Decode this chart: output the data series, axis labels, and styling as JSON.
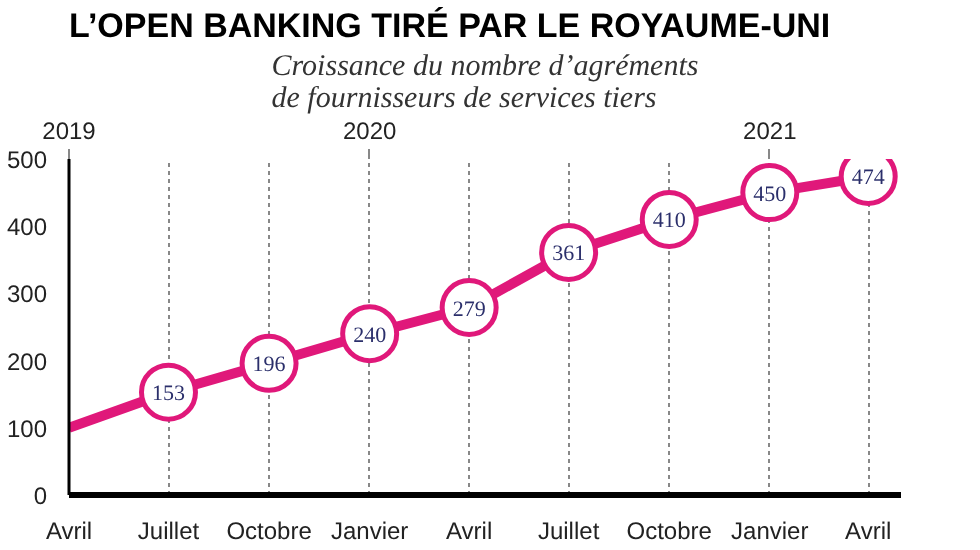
{
  "chart_data": {
    "type": "line",
    "title": "L’OPEN BANKING TIRÉ PAR LE ROYAUME-UNI",
    "subtitle": "Croissance du nombre d’agréments de fournisseurs de services tiers",
    "x": [
      "2019-04",
      "2019-07",
      "2019-10",
      "2020-01",
      "2020-04",
      "2020-07",
      "2020-10",
      "2021-01",
      "2021-04"
    ],
    "series": [
      {
        "color": "#e0187a",
        "values": [
          100,
          153,
          196,
          240,
          279,
          361,
          410,
          450,
          474
        ],
        "value_labels": [
          null,
          "153",
          "196",
          "240",
          "279",
          "361",
          "410",
          "450",
          "474"
        ]
      }
    ],
    "xlim": [
      "2019-04",
      "2021-05"
    ],
    "xticks": [
      {
        "value": "2019-04",
        "label": "Avril"
      },
      {
        "value": "2019-07",
        "label": "Juillet"
      },
      {
        "value": "2019-10",
        "label": "Octobre"
      },
      {
        "value": "2020-01",
        "label": "Janvier"
      },
      {
        "value": "2020-04",
        "label": "Avril"
      },
      {
        "value": "2020-07",
        "label": "Juillet"
      },
      {
        "value": "2020-10",
        "label": "Octobre"
      },
      {
        "value": "2021-01",
        "label": "Janvier"
      },
      {
        "value": "2021-04",
        "label": "Avril"
      }
    ],
    "x2lim": [
      "2019-04",
      "2021-05"
    ],
    "x2ticks": [
      {
        "value": "2019-04",
        "label": "2019"
      },
      {
        "value": "2020-01",
        "label": "2020"
      },
      {
        "value": "2021-01",
        "label": "2021"
      }
    ],
    "ylim": [
      0,
      500
    ],
    "yticks": [
      0,
      100,
      200,
      300,
      400,
      500
    ],
    "grid": "x",
    "marker": "circle",
    "line_style": "solid"
  }
}
